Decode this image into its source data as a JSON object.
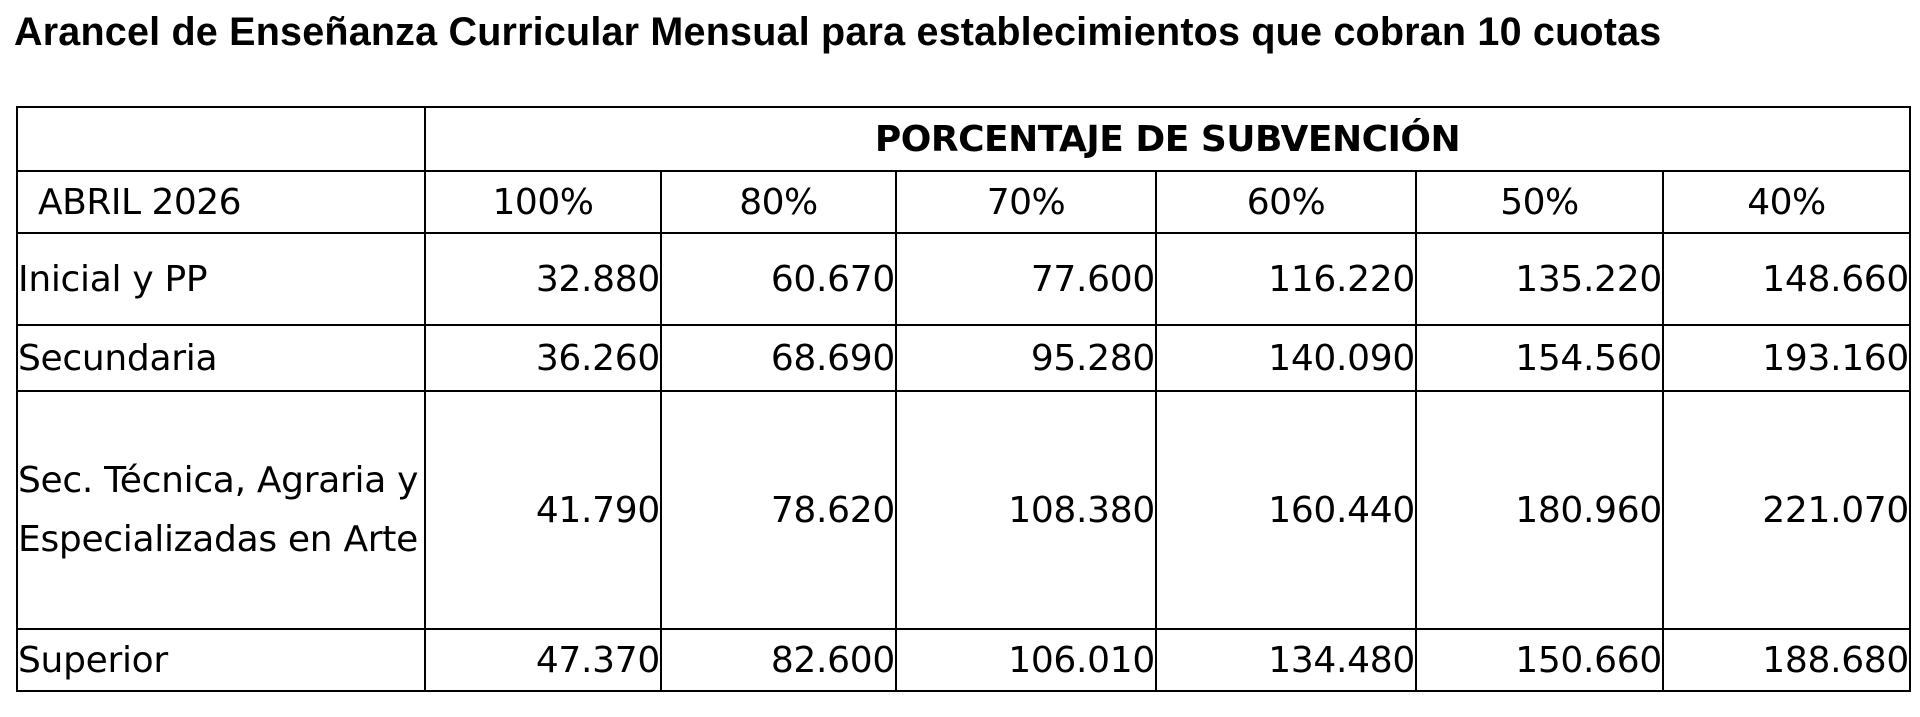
{
  "title": "Arancel de Enseñanza Curricular Mensual para establecimientos que cobran 10 cuotas",
  "table": {
    "group_header": "PORCENTAJE DE SUBVENCIÓN",
    "row_header_label": "ABRIL 2026",
    "columns": [
      "100%",
      "80%",
      "70%",
      "60%",
      "50%",
      "40%"
    ],
    "rows": [
      {
        "label": "Inicial y PP",
        "values": [
          "32.880",
          "60.670",
          "77.600",
          "116.220",
          "135.220",
          "148.660"
        ]
      },
      {
        "label": "Secundaria",
        "values": [
          "36.260",
          "68.690",
          "95.280",
          "140.090",
          "154.560",
          "193.160"
        ]
      },
      {
        "label": "Sec. Técnica, Agraria y Especializadas en Arte",
        "values": [
          "41.790",
          "78.620",
          "108.380",
          "160.440",
          "180.960",
          "221.070"
        ]
      },
      {
        "label": "Superior",
        "values": [
          "47.370",
          "82.600",
          "106.010",
          "134.480",
          "150.660",
          "188.680"
        ]
      }
    ]
  }
}
